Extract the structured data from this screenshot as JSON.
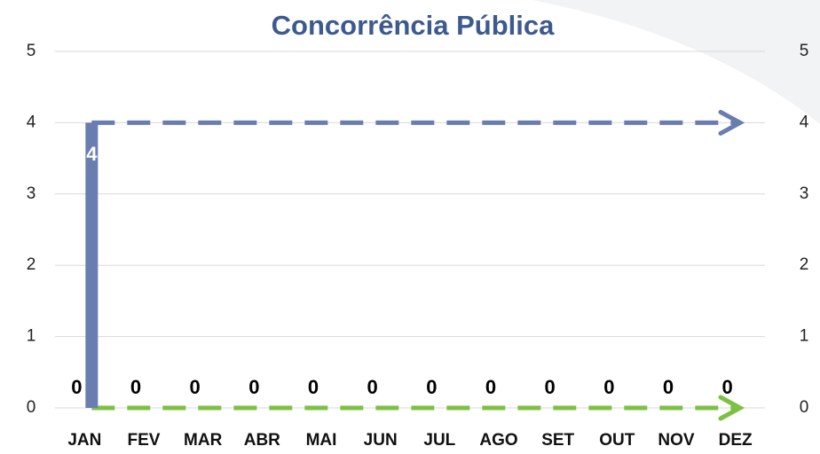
{
  "chart_data": {
    "type": "bar",
    "title": "Concorrência Pública",
    "categories": [
      "JAN",
      "FEV",
      "MAR",
      "ABR",
      "MAI",
      "JUN",
      "JUL",
      "AGO",
      "SET",
      "OUT",
      "NOV",
      "DEZ"
    ],
    "series": [
      {
        "color": "#7dc142",
        "label_color": "#000000",
        "values": [
          0,
          0,
          0,
          0,
          0,
          0,
          0,
          0,
          0,
          0,
          0,
          0
        ]
      },
      {
        "color": "#6a7db0",
        "label_color": "#ffffff",
        "values": [
          4,
          0,
          0,
          0,
          0,
          0,
          0,
          0,
          0,
          0,
          0,
          0
        ]
      }
    ],
    "ylim": [
      0,
      5
    ],
    "yticks": [
      0,
      1,
      2,
      3,
      4,
      5
    ],
    "y2lim": [
      0,
      5
    ],
    "y2ticks": [
      0,
      1,
      2,
      3,
      4,
      5
    ],
    "grid": true
  }
}
